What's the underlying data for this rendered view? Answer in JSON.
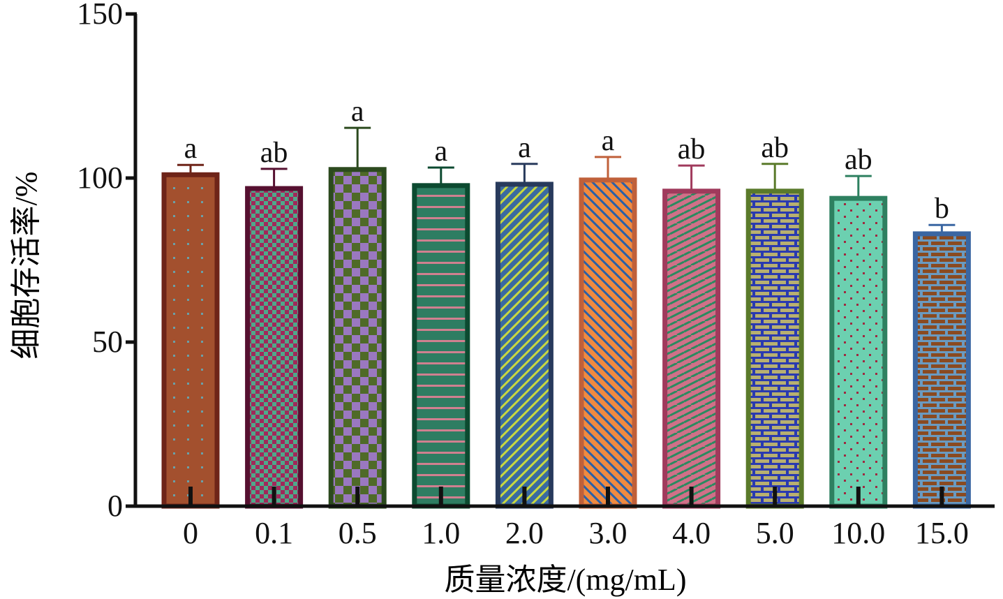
{
  "chart_data": {
    "type": "bar",
    "title": "",
    "xlabel": "质量浓度/(mg/mL)",
    "ylabel": "细胞存活率/%",
    "ylim": [
      0,
      150
    ],
    "yticks": [
      "0",
      "50",
      "100",
      "150"
    ],
    "ytick_values": [
      0,
      50,
      100,
      150
    ],
    "grid": false,
    "categories": [
      "0",
      "0.1",
      "0.5",
      "1.0",
      "2.0",
      "3.0",
      "4.0",
      "5.0",
      "10.0",
      "15.0"
    ],
    "values": [
      101,
      96.8,
      102.6,
      97.7,
      98.1,
      99.4,
      96.0,
      96.0,
      93.8,
      83.0
    ],
    "error_upper": [
      104.0,
      102.8,
      115.3,
      103.2,
      104.3,
      106.4,
      103.8,
      104.3,
      100.6,
      85.7
    ],
    "significance_labels": [
      "a",
      "ab",
      "a",
      "a",
      "a",
      "a",
      "ab",
      "ab",
      "ab",
      "b"
    ],
    "bar_styles": [
      {
        "border": "#6e2418",
        "fill": "#a3502e",
        "accent": "#6aa0a8",
        "pattern": "dots"
      },
      {
        "border": "#561030",
        "fill": "#4fa88a",
        "accent": "#a0285a",
        "pattern": "checker-small"
      },
      {
        "border": "#2c4a1e",
        "fill": "#4f6a28",
        "accent": "#9a78c0",
        "pattern": "checker-large"
      },
      {
        "border": "#0c4a30",
        "fill": "#2e7d62",
        "accent": "#d08090",
        "pattern": "hlines"
      },
      {
        "border": "#283a5c",
        "fill": "#3a6aa0",
        "accent": "#c8d840",
        "pattern": "diag-up"
      },
      {
        "border": "#c0603a",
        "fill": "#f08a40",
        "accent": "#2a60a8",
        "pattern": "diag-down"
      },
      {
        "border": "#a03a5c",
        "fill": "#d07088",
        "accent": "#2a8a60",
        "pattern": "weave"
      },
      {
        "border": "#5a7a2a",
        "fill": "#b8b070",
        "accent": "#2a3ab0",
        "pattern": "brick"
      },
      {
        "border": "#2e8060",
        "fill": "#6cd0b0",
        "accent": "#a02840",
        "pattern": "dots-red"
      },
      {
        "border": "#3a66a2",
        "fill": "#8a4a20",
        "accent": "#6a9ac0",
        "pattern": "brick2"
      }
    ]
  }
}
